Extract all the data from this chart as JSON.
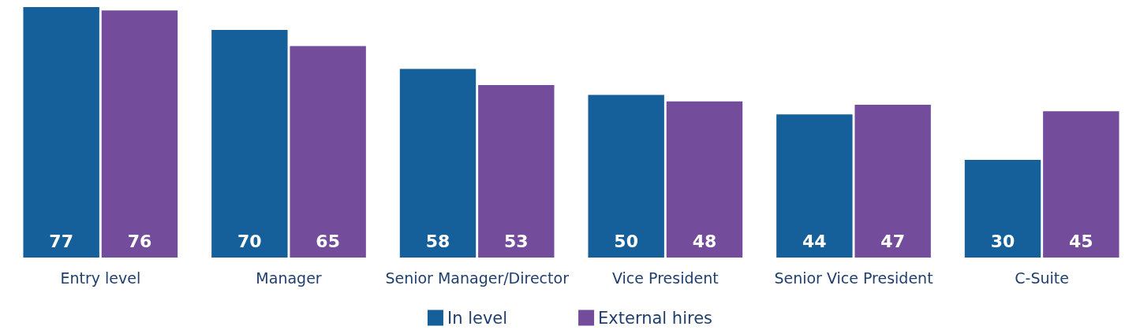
{
  "chart_data": {
    "type": "bar",
    "categories": [
      "Entry level",
      "Manager",
      "Senior Manager/Director",
      "Vice President",
      "Senior Vice President",
      "C-Suite"
    ],
    "series": [
      {
        "name": "In level",
        "color": "#155f9a",
        "values": [
          77,
          70,
          58,
          50,
          44,
          30
        ]
      },
      {
        "name": "External hires",
        "color": "#734c9c",
        "values": [
          76,
          65,
          53,
          48,
          47,
          45
        ]
      }
    ],
    "data_labels": true,
    "legend": "bottom"
  }
}
